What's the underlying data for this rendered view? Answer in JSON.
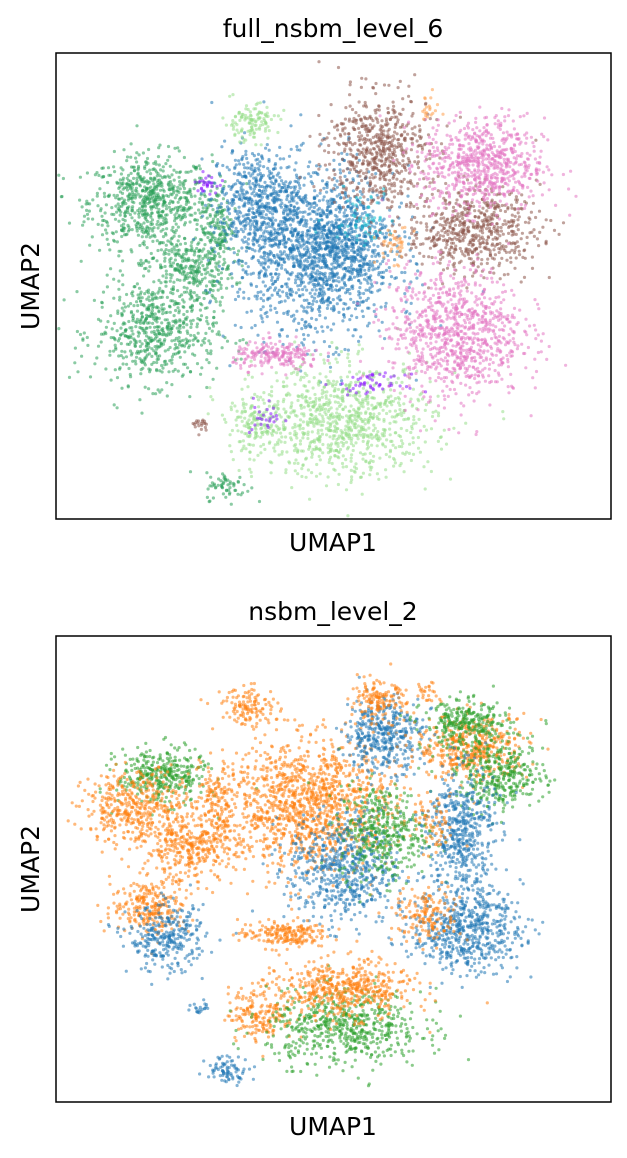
{
  "chart_data": [
    {
      "type": "scatter",
      "title": "full_nsbm_level_6",
      "xlabel": "UMAP1",
      "ylabel": "UMAP2",
      "xlim": [
        0,
        100
      ],
      "ylim": [
        0,
        100
      ],
      "xticks": false,
      "yticks": false,
      "grid": false,
      "legend": "none",
      "clusters": [
        {
          "x": 17,
          "y": 68,
          "sx": 5.5,
          "sy": 5,
          "n": 700,
          "color": "#2ca05a"
        },
        {
          "x": 24,
          "y": 54,
          "sx": 4,
          "sy": 3.5,
          "n": 300,
          "color": "#2ca05a"
        },
        {
          "x": 18,
          "y": 40,
          "sx": 5.5,
          "sy": 5.5,
          "n": 600,
          "color": "#2ca05a"
        },
        {
          "x": 29,
          "y": 63,
          "sx": 1.5,
          "sy": 5,
          "n": 150,
          "color": "#2ca05a"
        },
        {
          "x": 31,
          "y": 7,
          "sx": 2,
          "sy": 1.5,
          "n": 60,
          "color": "#2ca05a"
        },
        {
          "x": 36,
          "y": 68,
          "sx": 4,
          "sy": 6,
          "n": 500,
          "color": "#1f77b4"
        },
        {
          "x": 47,
          "y": 57,
          "sx": 7,
          "sy": 9,
          "n": 1400,
          "color": "#1f77b4"
        },
        {
          "x": 52,
          "y": 60,
          "sx": 4,
          "sy": 5,
          "n": 300,
          "color": "#1f77b4"
        },
        {
          "x": 35,
          "y": 85,
          "sx": 2.5,
          "sy": 2,
          "n": 120,
          "color": "#98df8a"
        },
        {
          "x": 36,
          "y": 20,
          "sx": 2.5,
          "sy": 3,
          "n": 150,
          "color": "#98df8a"
        },
        {
          "x": 52,
          "y": 21,
          "sx": 8,
          "sy": 6,
          "n": 900,
          "color": "#98df8a"
        },
        {
          "x": 58,
          "y": 79,
          "sx": 4.5,
          "sy": 6,
          "n": 600,
          "color": "#8c564b"
        },
        {
          "x": 75,
          "y": 62,
          "sx": 6,
          "sy": 4.5,
          "n": 600,
          "color": "#8c564b"
        },
        {
          "x": 77,
          "y": 76,
          "sx": 5.5,
          "sy": 5,
          "n": 700,
          "color": "#e377c2"
        },
        {
          "x": 72,
          "y": 40,
          "sx": 6,
          "sy": 7,
          "n": 900,
          "color": "#e377c2"
        },
        {
          "x": 40,
          "y": 35,
          "sx": 4,
          "sy": 1.5,
          "n": 200,
          "color": "#e377c2"
        },
        {
          "x": 55,
          "y": 65,
          "sx": 3,
          "sy": 3,
          "n": 60,
          "color": "#17becf"
        },
        {
          "x": 27,
          "y": 72,
          "sx": 1,
          "sy": 1,
          "n": 30,
          "color": "#8c1aff"
        },
        {
          "x": 57,
          "y": 29,
          "sx": 3,
          "sy": 1,
          "n": 50,
          "color": "#8c1aff"
        },
        {
          "x": 38,
          "y": 22,
          "sx": 1.5,
          "sy": 2,
          "n": 25,
          "color": "#8c1aff"
        },
        {
          "x": 61,
          "y": 59,
          "sx": 1.5,
          "sy": 2,
          "n": 40,
          "color": "#ff9e4a"
        },
        {
          "x": 67,
          "y": 88,
          "sx": 1,
          "sy": 1.5,
          "n": 20,
          "color": "#ff9e4a"
        },
        {
          "x": 26,
          "y": 20,
          "sx": 1,
          "sy": 0.8,
          "n": 20,
          "color": "#8c564b"
        }
      ]
    },
    {
      "type": "scatter",
      "title": "nsbm_level_2",
      "xlabel": "UMAP1",
      "ylabel": "UMAP2",
      "xlim": [
        0,
        100
      ],
      "ylim": [
        0,
        100
      ],
      "xticks": false,
      "yticks": false,
      "grid": false,
      "legend": "none",
      "clusters": [
        {
          "x": 19,
          "y": 70,
          "sx": 4,
          "sy": 3,
          "n": 350,
          "color": "#2ca02c"
        },
        {
          "x": 15,
          "y": 63,
          "sx": 5,
          "sy": 4,
          "n": 450,
          "color": "#ff7f0e"
        },
        {
          "x": 24,
          "y": 54,
          "sx": 4,
          "sy": 3.5,
          "n": 300,
          "color": "#ff7f0e"
        },
        {
          "x": 17,
          "y": 42,
          "sx": 3.5,
          "sy": 3,
          "n": 250,
          "color": "#ff7f0e"
        },
        {
          "x": 20,
          "y": 35,
          "sx": 3.5,
          "sy": 3.5,
          "n": 300,
          "color": "#1f77b4"
        },
        {
          "x": 29,
          "y": 63,
          "sx": 1.5,
          "sy": 5,
          "n": 120,
          "color": "#ff7f0e"
        },
        {
          "x": 35,
          "y": 85,
          "sx": 2.5,
          "sy": 2,
          "n": 120,
          "color": "#ff7f0e"
        },
        {
          "x": 45,
          "y": 64,
          "sx": 8,
          "sy": 7,
          "n": 1300,
          "color": "#ff7f0e"
        },
        {
          "x": 52,
          "y": 50,
          "sx": 5,
          "sy": 6,
          "n": 600,
          "color": "#1f77b4"
        },
        {
          "x": 59,
          "y": 58,
          "sx": 4,
          "sy": 5,
          "n": 400,
          "color": "#2ca02c"
        },
        {
          "x": 41,
          "y": 36,
          "sx": 4,
          "sy": 1.5,
          "n": 200,
          "color": "#ff7f0e"
        },
        {
          "x": 37,
          "y": 19,
          "sx": 3,
          "sy": 3,
          "n": 180,
          "color": "#ff7f0e"
        },
        {
          "x": 52,
          "y": 16,
          "sx": 7,
          "sy": 4,
          "n": 600,
          "color": "#2ca02c"
        },
        {
          "x": 52,
          "y": 24,
          "sx": 6,
          "sy": 3,
          "n": 500,
          "color": "#ff7f0e"
        },
        {
          "x": 31,
          "y": 7,
          "sx": 2,
          "sy": 1.5,
          "n": 80,
          "color": "#1f77b4"
        },
        {
          "x": 59,
          "y": 79,
          "sx": 3.5,
          "sy": 4,
          "n": 400,
          "color": "#1f77b4"
        },
        {
          "x": 58,
          "y": 86,
          "sx": 2.5,
          "sy": 2,
          "n": 150,
          "color": "#ff7f0e"
        },
        {
          "x": 75,
          "y": 76,
          "sx": 5,
          "sy": 3.5,
          "n": 450,
          "color": "#ff7f0e"
        },
        {
          "x": 74,
          "y": 81,
          "sx": 4,
          "sy": 2.5,
          "n": 300,
          "color": "#2ca02c"
        },
        {
          "x": 80,
          "y": 70,
          "sx": 4,
          "sy": 3.5,
          "n": 350,
          "color": "#2ca02c"
        },
        {
          "x": 73,
          "y": 58,
          "sx": 3,
          "sy": 7,
          "n": 500,
          "color": "#1f77b4"
        },
        {
          "x": 74,
          "y": 37,
          "sx": 5,
          "sy": 4.5,
          "n": 600,
          "color": "#1f77b4"
        },
        {
          "x": 67,
          "y": 40,
          "sx": 3,
          "sy": 3,
          "n": 150,
          "color": "#ff7f0e"
        },
        {
          "x": 68,
          "y": 59,
          "sx": 2,
          "sy": 3,
          "n": 60,
          "color": "#ff7f0e"
        },
        {
          "x": 26,
          "y": 20,
          "sx": 1,
          "sy": 0.8,
          "n": 20,
          "color": "#1f77b4"
        },
        {
          "x": 67,
          "y": 88,
          "sx": 1,
          "sy": 1.5,
          "n": 25,
          "color": "#ff7f0e"
        }
      ]
    }
  ]
}
